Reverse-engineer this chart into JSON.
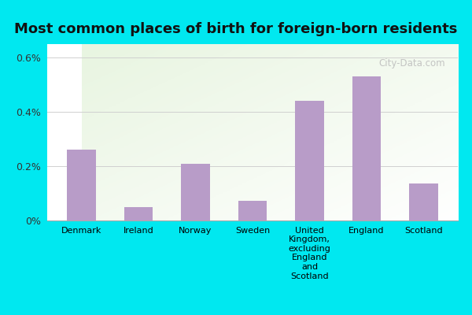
{
  "categories": [
    "Denmark",
    "Ireland",
    "Norway",
    "Sweden",
    "United\nKingdom,\nexcluding\nEngland\nand\nScotland",
    "England",
    "Scotland"
  ],
  "values": [
    0.0026,
    0.00048,
    0.0021,
    0.00072,
    0.0044,
    0.0053,
    0.00135
  ],
  "bar_color": "#b89cc8",
  "title": "Most common places of birth for foreign-born residents",
  "title_fontsize": 13,
  "ylim": [
    0,
    0.0065
  ],
  "yticks": [
    0,
    0.002,
    0.004,
    0.006
  ],
  "ytick_labels": [
    "0%",
    "0.2%",
    "0.4%",
    "0.6%"
  ],
  "bg_color_fig": "#00e8f0",
  "grid_color": "#d0d0d0",
  "watermark": "City-Data.com"
}
